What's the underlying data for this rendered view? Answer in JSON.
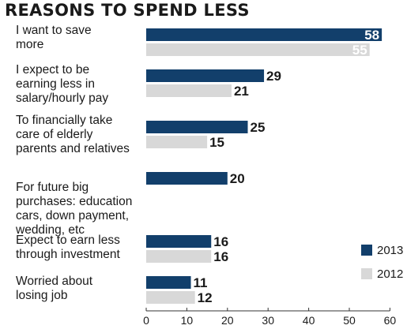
{
  "chart_data": {
    "type": "bar",
    "orientation": "horizontal",
    "title": "REASONS TO SPEND LESS",
    "xlim": [
      0,
      60
    ],
    "xticks": [
      0,
      10,
      20,
      30,
      40,
      50,
      60
    ],
    "grid": false,
    "legend_position": "right",
    "categories": [
      [
        "I want to save",
        "more"
      ],
      [
        "I expect to be",
        "earning less in",
        "salary/hourly pay"
      ],
      [
        "To financially take",
        "care of elderly",
        "parents and relatives"
      ],
      [
        "For future big",
        "purchases: education",
        "cars, down payment,",
        "wedding, etc"
      ],
      [
        "Expect to earn less",
        "through investment"
      ],
      [
        "Worried about",
        "losing job"
      ]
    ],
    "series": [
      {
        "name": "2013",
        "color": "#123f6b",
        "values": [
          58,
          29,
          25,
          20,
          16,
          11
        ]
      },
      {
        "name": "2012",
        "color": "#d8d8d8",
        "values": [
          55,
          21,
          15,
          null,
          16,
          12
        ]
      }
    ]
  }
}
